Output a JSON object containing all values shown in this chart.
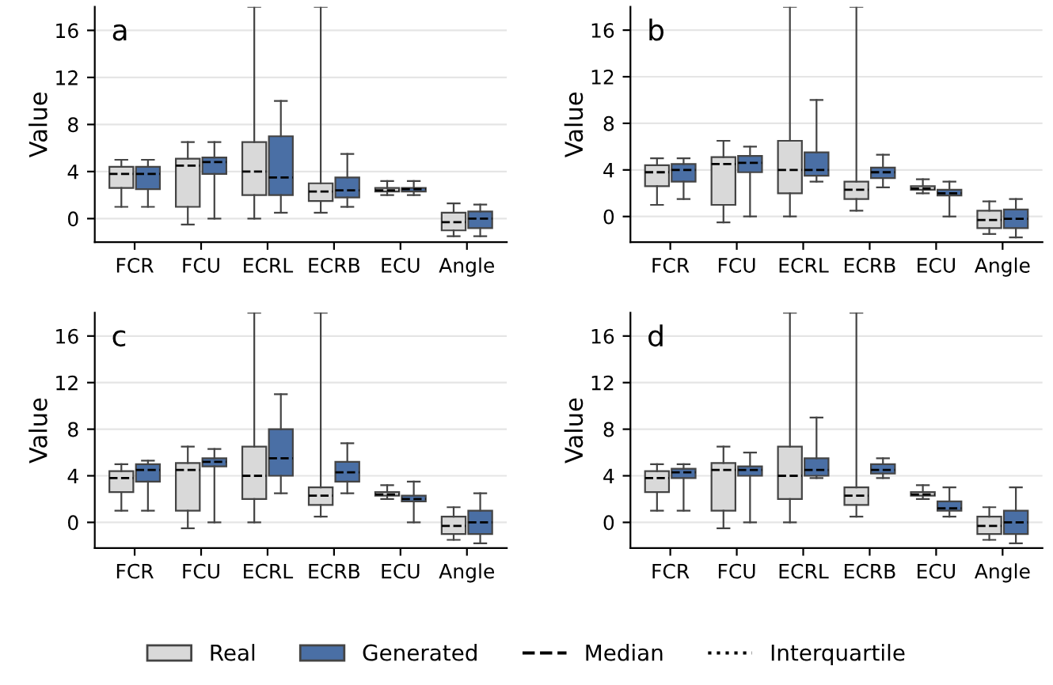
{
  "chart_data": [
    {
      "type": "box",
      "title": "a",
      "ylabel": "Value",
      "categories": [
        "FCR",
        "FCU",
        "ECRL",
        "ECRB",
        "ECU",
        "Angle"
      ],
      "ylim": [
        -2,
        18
      ],
      "yticks": [
        0,
        4,
        8,
        12,
        16
      ],
      "grid": "y",
      "legend": "bottom",
      "series": [
        {
          "name": "Real",
          "color": "#d9d9d9",
          "boxes": [
            {
              "low": 1,
              "q1": 2.6,
              "median": 3.8,
              "q3": 4.4,
              "high": 5
            },
            {
              "low": -0.5,
              "q1": 1,
              "median": 4.5,
              "q3": 5.1,
              "high": 6.5
            },
            {
              "low": 0,
              "q1": 2,
              "median": 4,
              "q3": 6.5,
              "high": 18
            },
            {
              "low": 0.5,
              "q1": 1.5,
              "median": 2.3,
              "q3": 3,
              "high": 18
            },
            {
              "low": 2,
              "q1": 2.3,
              "median": 2.4,
              "q3": 2.6,
              "high": 3.2
            },
            {
              "low": -1.5,
              "q1": -1,
              "median": -0.3,
              "q3": 0.5,
              "high": 1.3
            }
          ]
        },
        {
          "name": "Generated",
          "color": "#4a6fa5",
          "boxes": [
            {
              "low": 1,
              "q1": 2.5,
              "median": 3.8,
              "q3": 4.4,
              "high": 5
            },
            {
              "low": 0,
              "q1": 3.8,
              "median": 4.8,
              "q3": 5.2,
              "high": 6.5
            },
            {
              "low": 0.5,
              "q1": 2,
              "median": 3.5,
              "q3": 7,
              "high": 10
            },
            {
              "low": 1,
              "q1": 1.8,
              "median": 2.4,
              "q3": 3.5,
              "high": 5.5
            },
            {
              "low": 2,
              "q1": 2.3,
              "median": 2.5,
              "q3": 2.6,
              "high": 3.2
            },
            {
              "low": -1.5,
              "q1": -0.8,
              "median": 0,
              "q3": 0.6,
              "high": 1.2
            }
          ]
        }
      ]
    },
    {
      "type": "box",
      "title": "b",
      "ylabel": "Value",
      "categories": [
        "FCR",
        "FCU",
        "ECRL",
        "ECRB",
        "ECU",
        "Angle"
      ],
      "ylim": [
        -2.2,
        18
      ],
      "yticks": [
        0,
        4,
        8,
        12,
        16
      ],
      "grid": "y",
      "legend": "bottom",
      "series": [
        {
          "name": "Real",
          "color": "#d9d9d9",
          "boxes": [
            {
              "low": 1,
              "q1": 2.6,
              "median": 3.8,
              "q3": 4.4,
              "high": 5
            },
            {
              "low": -0.5,
              "q1": 1,
              "median": 4.5,
              "q3": 5.1,
              "high": 6.5
            },
            {
              "low": 0,
              "q1": 2,
              "median": 4,
              "q3": 6.5,
              "high": 18
            },
            {
              "low": 0.5,
              "q1": 1.5,
              "median": 2.3,
              "q3": 3,
              "high": 18
            },
            {
              "low": 2,
              "q1": 2.3,
              "median": 2.4,
              "q3": 2.6,
              "high": 3.2
            },
            {
              "low": -1.5,
              "q1": -1,
              "median": -0.3,
              "q3": 0.5,
              "high": 1.3
            }
          ]
        },
        {
          "name": "Generated",
          "color": "#4a6fa5",
          "boxes": [
            {
              "low": 1.5,
              "q1": 3,
              "median": 4,
              "q3": 4.5,
              "high": 5
            },
            {
              "low": 0,
              "q1": 3.8,
              "median": 4.6,
              "q3": 5.2,
              "high": 6
            },
            {
              "low": 3,
              "q1": 3.5,
              "median": 4,
              "q3": 5.5,
              "high": 10
            },
            {
              "low": 2.5,
              "q1": 3.3,
              "median": 3.8,
              "q3": 4.2,
              "high": 5.3
            },
            {
              "low": 0,
              "q1": 1.8,
              "median": 2,
              "q3": 2.3,
              "high": 3
            },
            {
              "low": -1.8,
              "q1": -1,
              "median": -0.2,
              "q3": 0.6,
              "high": 1.5
            }
          ]
        }
      ]
    },
    {
      "type": "box",
      "title": "c",
      "ylabel": "Value",
      "categories": [
        "FCR",
        "FCU",
        "ECRL",
        "ECRB",
        "ECU",
        "Angle"
      ],
      "ylim": [
        -2.2,
        18
      ],
      "yticks": [
        0,
        4,
        8,
        12,
        16
      ],
      "grid": "y",
      "legend": "bottom",
      "series": [
        {
          "name": "Real",
          "color": "#d9d9d9",
          "boxes": [
            {
              "low": 1,
              "q1": 2.6,
              "median": 3.8,
              "q3": 4.4,
              "high": 5
            },
            {
              "low": -0.5,
              "q1": 1,
              "median": 4.5,
              "q3": 5.1,
              "high": 6.5
            },
            {
              "low": 0,
              "q1": 2,
              "median": 4,
              "q3": 6.5,
              "high": 18
            },
            {
              "low": 0.5,
              "q1": 1.5,
              "median": 2.3,
              "q3": 3,
              "high": 18
            },
            {
              "low": 2,
              "q1": 2.3,
              "median": 2.4,
              "q3": 2.6,
              "high": 3.2
            },
            {
              "low": -1.5,
              "q1": -1,
              "median": -0.3,
              "q3": 0.5,
              "high": 1.3
            }
          ]
        },
        {
          "name": "Generated",
          "color": "#4a6fa5",
          "boxes": [
            {
              "low": 1,
              "q1": 3.5,
              "median": 4.5,
              "q3": 5,
              "high": 5.3
            },
            {
              "low": 0,
              "q1": 4.8,
              "median": 5.2,
              "q3": 5.5,
              "high": 6.3
            },
            {
              "low": 2.5,
              "q1": 4,
              "median": 5.5,
              "q3": 8,
              "high": 11
            },
            {
              "low": 2.5,
              "q1": 3.5,
              "median": 4.3,
              "q3": 5.2,
              "high": 6.8
            },
            {
              "low": 0,
              "q1": 1.8,
              "median": 2,
              "q3": 2.3,
              "high": 3.5
            },
            {
              "low": -1.8,
              "q1": -1,
              "median": 0,
              "q3": 1,
              "high": 2.5
            }
          ]
        }
      ]
    },
    {
      "type": "box",
      "title": "d",
      "ylabel": "Value",
      "categories": [
        "FCR",
        "FCU",
        "ECRL",
        "ECRB",
        "ECU",
        "Angle"
      ],
      "ylim": [
        -2.2,
        18
      ],
      "yticks": [
        0,
        4,
        8,
        12,
        16
      ],
      "grid": "y",
      "legend": "bottom",
      "annotations": [
        "Median",
        "Interquartile"
      ],
      "series": [
        {
          "name": "Real",
          "color": "#d9d9d9",
          "boxes": [
            {
              "low": 1,
              "q1": 2.6,
              "median": 3.8,
              "q3": 4.4,
              "high": 5
            },
            {
              "low": -0.5,
              "q1": 1,
              "median": 4.5,
              "q3": 5.1,
              "high": 6.5
            },
            {
              "low": 0,
              "q1": 2,
              "median": 4,
              "q3": 6.5,
              "high": 18
            },
            {
              "low": 0.5,
              "q1": 1.5,
              "median": 2.3,
              "q3": 3,
              "high": 18
            },
            {
              "low": 2,
              "q1": 2.3,
              "median": 2.4,
              "q3": 2.6,
              "high": 3.2
            },
            {
              "low": -1.5,
              "q1": -1,
              "median": -0.3,
              "q3": 0.5,
              "high": 1.3
            }
          ]
        },
        {
          "name": "Generated",
          "color": "#4a6fa5",
          "boxes": [
            {
              "low": 1,
              "q1": 3.8,
              "median": 4.3,
              "q3": 4.6,
              "high": 5
            },
            {
              "low": 0,
              "q1": 4,
              "median": 4.5,
              "q3": 4.8,
              "high": 6
            },
            {
              "low": 3.8,
              "q1": 4,
              "median": 4.5,
              "q3": 5.5,
              "high": 9
            },
            {
              "low": 3.8,
              "q1": 4.2,
              "median": 4.5,
              "q3": 5,
              "high": 5.5
            },
            {
              "low": 0.5,
              "q1": 1,
              "median": 1.2,
              "q3": 1.8,
              "high": 3
            },
            {
              "low": -1.8,
              "q1": -1,
              "median": 0,
              "q3": 1,
              "high": 3
            }
          ]
        }
      ]
    }
  ]
}
